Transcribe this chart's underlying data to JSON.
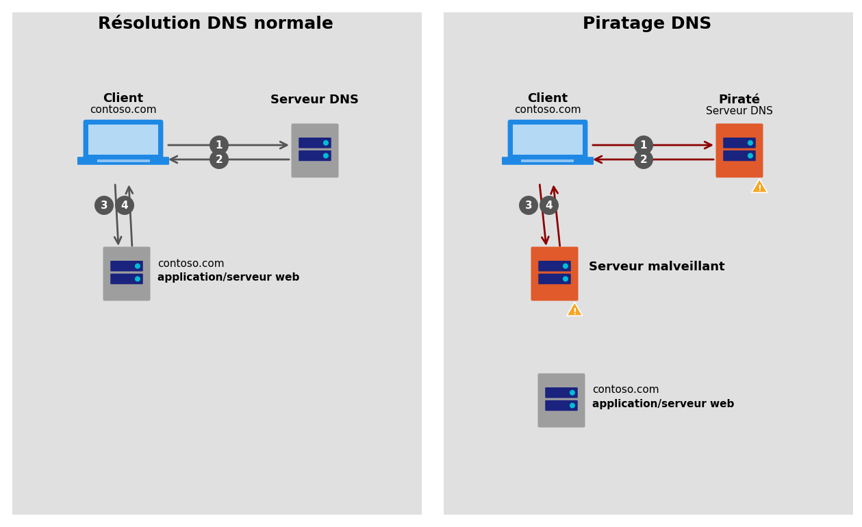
{
  "bg_color": "#ffffff",
  "panel_color": "#e0e0e0",
  "title_left": "Résolution DNS normale",
  "title_right": "Piratage DNS",
  "arrow_color_normal": "#555555",
  "arrow_color_hack": "#8b0000",
  "circle_color": "#555555",
  "circle_text_color": "#ffffff",
  "laptop_body_color": "#1e88e5",
  "laptop_screen_color": "#b3d9f5",
  "server_normal_color": "#9e9e9e",
  "server_hack_color": "#e05a2b",
  "server_disk_color": "#1a237e",
  "server_disk_light": "#00bcd4",
  "warning_color": "#f5a623",
  "warning_text": "!",
  "text_client": "Client",
  "text_contoso": "contoso.com",
  "text_dns_normal": "Serveur DNS",
  "text_pirate": "Piraté",
  "text_dns_hack": "Serveur DNS",
  "text_malveillant": "Serveur malveillant",
  "text_app_web": "application/serveur web"
}
